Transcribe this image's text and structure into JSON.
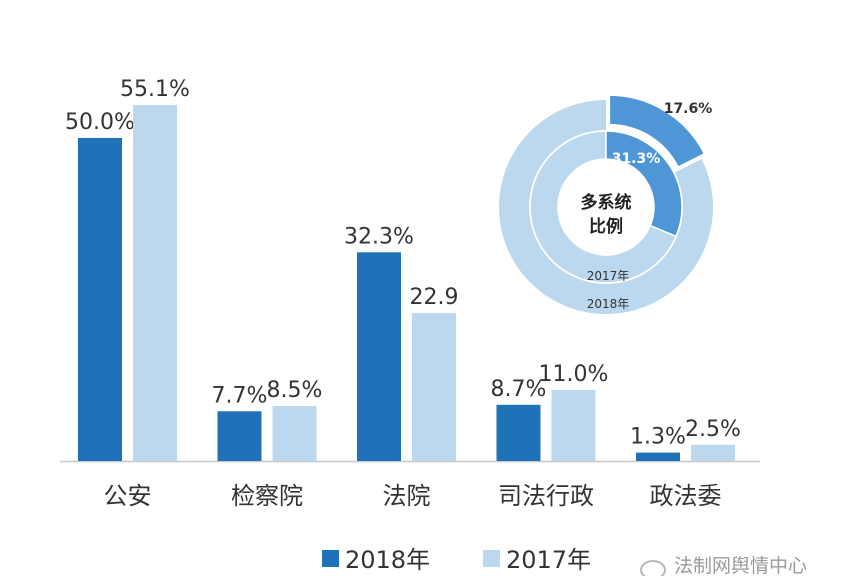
{
  "chart_data": [
    {
      "type": "bar",
      "categories": [
        "公安",
        "检察院",
        "法院",
        "司法行政",
        "政法委"
      ],
      "series": [
        {
          "name": "2018年",
          "color": "#1f72b8",
          "values": [
            50.0,
            7.7,
            32.3,
            8.7,
            1.3
          ],
          "labels": [
            "50.0%",
            "7.7%",
            "32.3%",
            "8.7%",
            "1.3%"
          ]
        },
        {
          "name": "2017年",
          "color": "#bcd8ee",
          "values": [
            55.1,
            8.5,
            22.9,
            11.0,
            2.5
          ],
          "labels": [
            "55.1%",
            "8.5%",
            "22.9",
            "11.0%",
            "2.5%"
          ]
        }
      ],
      "ylim": [
        0,
        55.1
      ],
      "grid": false,
      "legend": "bottom"
    },
    {
      "type": "pie",
      "style": "nested-donut",
      "center_label": [
        "多系统",
        "比例"
      ],
      "rings": [
        {
          "name": "2017年",
          "position": "inner",
          "highlight_value": 31.3,
          "highlight_label": "31.3%",
          "highlight_color": "#4f96d6",
          "rest_color": "#bcd8ee",
          "ring_label": "2017年"
        },
        {
          "name": "2018年",
          "position": "outer",
          "highlight_value": 17.6,
          "highlight_label": "17.6%",
          "highlight_color": "#4f96d6",
          "rest_color": "#bcd8ee",
          "ring_label": "2018年"
        }
      ]
    }
  ],
  "watermark": {
    "text": "法制网舆情中心",
    "icon": "wechat-icon"
  }
}
